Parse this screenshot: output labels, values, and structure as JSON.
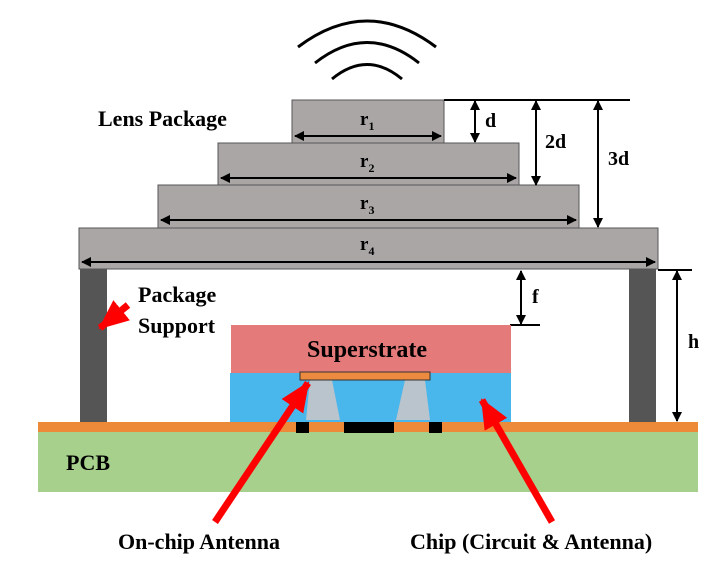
{
  "labels": {
    "lens_package": "Lens Package",
    "package_support_line1": "Package",
    "package_support_line2": "Support",
    "superstrate": "Superstrate",
    "pcb": "PCB",
    "on_chip_antenna": "On-chip Antenna",
    "chip": "Chip (Circuit & Antenna)"
  },
  "radii": [
    {
      "base": "r",
      "sub": "1"
    },
    {
      "base": "r",
      "sub": "2"
    },
    {
      "base": "r",
      "sub": "3"
    },
    {
      "base": "r",
      "sub": "4"
    }
  ],
  "dimensions": {
    "d": "d",
    "two_d": "2d",
    "three_d": "3d",
    "f": "f",
    "h": "h"
  },
  "colors": {
    "lens": "#aaa6a6",
    "support": "#555555",
    "superstrate": "#e57a7a",
    "chip": "#49b6ec",
    "antenna": "#ec8a3f",
    "pcb": "#a8d08d",
    "pcb_copper": "#ed8a3a",
    "arrow_red": "#ff0000",
    "via": "#b9c4cc",
    "solder": "#000000"
  }
}
